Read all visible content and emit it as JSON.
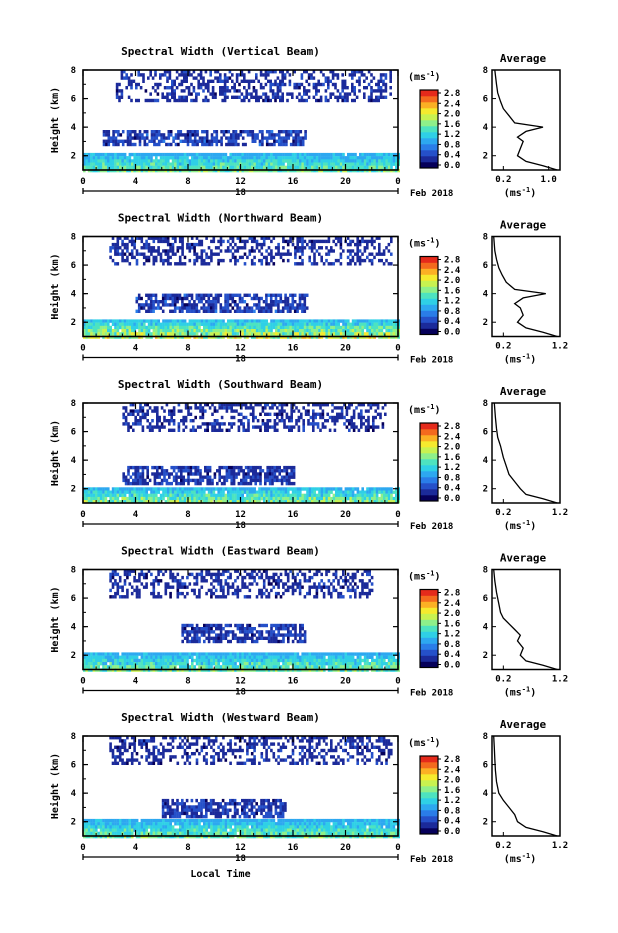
{
  "figure": {
    "xlabel_bottom": "Local Time",
    "date_label": "Feb 2018",
    "day_label": "18",
    "colorbar_unit": "(ms",
    "colorbar_unit_exp": "-1",
    "colorbar_unit_close": ")",
    "average_unit": "(ms",
    "average_unit_exp": "-1",
    "average_unit_close": ")",
    "colorbar_ticks": [
      "0.0",
      "0.4",
      "0.8",
      "1.2",
      "1.6",
      "2.0",
      "2.4",
      "2.8"
    ],
    "colorscale": [
      "#06005a",
      "#1b2a9a",
      "#2550c9",
      "#2a7de8",
      "#2da8f0",
      "#2fd0e6",
      "#4de3c0",
      "#8ef08a",
      "#c8f250",
      "#f5ea2e",
      "#fbb024",
      "#f46a1e",
      "#e52a1b"
    ],
    "missing_color": "#ffffff"
  },
  "chart_data": [
    {
      "type": "heatmap",
      "title": "Spectral Width (Vertical Beam)",
      "xlabel": "",
      "ylabel": "Height (km)",
      "x_ticks": [
        "0",
        "4",
        "8",
        "12",
        "16",
        "20",
        "0"
      ],
      "xlim": [
        0,
        24
      ],
      "y_ticks": [
        "2",
        "4",
        "6",
        "8"
      ],
      "ylim": [
        1,
        8
      ],
      "colorbar_range": [
        0,
        2.8
      ],
      "layers": [
        {
          "name": "boundary layer",
          "x_start": 0,
          "x_end": 24,
          "y_bottom": 1.0,
          "y_top": 2.2,
          "value_range": [
            0.6,
            1.8
          ]
        },
        {
          "name": "mid layer",
          "x_start": 1.5,
          "x_end": 17,
          "y_bottom": 2.7,
          "y_top": 3.8,
          "value_range": [
            0.1,
            0.6
          ]
        },
        {
          "name": "upper layer",
          "x_start": 2.5,
          "x_end": 23.5,
          "y_bottom": 5.8,
          "y_top": 8.0,
          "value_range": [
            0.1,
            0.4
          ]
        }
      ],
      "average_profile": {
        "title": "Average",
        "xlabel": "(ms-1)",
        "x_ticks": [
          "0.2",
          "1.0"
        ],
        "xlim": [
          0,
          1.2
        ],
        "y_ticks": [
          "2",
          "4",
          "6",
          "8"
        ],
        "ylim": [
          1,
          8
        ],
        "points": [
          [
            1.15,
            1.0
          ],
          [
            0.9,
            1.3
          ],
          [
            0.6,
            1.6
          ],
          [
            0.45,
            2.0
          ],
          [
            0.5,
            2.5
          ],
          [
            0.55,
            3.0
          ],
          [
            0.45,
            3.3
          ],
          [
            0.6,
            3.7
          ],
          [
            0.9,
            4.0
          ],
          [
            0.4,
            4.3
          ],
          [
            0.3,
            4.8
          ],
          [
            0.2,
            5.3
          ],
          [
            0.15,
            5.8
          ],
          [
            0.1,
            6.4
          ],
          [
            0.08,
            7.0
          ],
          [
            0.05,
            8.0
          ]
        ]
      }
    },
    {
      "type": "heatmap",
      "title": "Spectral Width (Northward Beam)",
      "xlabel": "",
      "ylabel": "Height (km)",
      "x_ticks": [
        "0",
        "4",
        "8",
        "12",
        "16",
        "20",
        "0"
      ],
      "xlim": [
        0,
        24
      ],
      "y_ticks": [
        "2",
        "4",
        "6",
        "8"
      ],
      "ylim": [
        1,
        8
      ],
      "colorbar_range": [
        0,
        2.8
      ],
      "layers": [
        {
          "name": "boundary layer",
          "x_start": 0,
          "x_end": 24,
          "y_bottom": 1.0,
          "y_top": 2.2,
          "value_range": [
            0.6,
            2.2
          ]
        },
        {
          "name": "mid layer",
          "x_start": 4,
          "x_end": 17,
          "y_bottom": 2.8,
          "y_top": 4.0,
          "value_range": [
            0.1,
            0.6
          ]
        },
        {
          "name": "upper layer",
          "x_start": 2,
          "x_end": 23.5,
          "y_bottom": 6.0,
          "y_top": 8.0,
          "value_range": [
            0.1,
            0.4
          ]
        }
      ],
      "average_profile": {
        "title": "Average",
        "xlabel": "(ms-1)",
        "x_ticks": [
          "0.2",
          "1.2"
        ],
        "xlim": [
          0,
          1.2
        ],
        "y_ticks": [
          "2",
          "4",
          "6",
          "8"
        ],
        "ylim": [
          1,
          8
        ],
        "points": [
          [
            1.15,
            1.0
          ],
          [
            0.9,
            1.3
          ],
          [
            0.6,
            1.6
          ],
          [
            0.45,
            2.0
          ],
          [
            0.55,
            2.5
          ],
          [
            0.5,
            3.0
          ],
          [
            0.4,
            3.3
          ],
          [
            0.55,
            3.7
          ],
          [
            0.95,
            4.0
          ],
          [
            0.4,
            4.3
          ],
          [
            0.25,
            4.8
          ],
          [
            0.18,
            5.3
          ],
          [
            0.12,
            5.8
          ],
          [
            0.08,
            6.4
          ],
          [
            0.05,
            7.0
          ],
          [
            0.03,
            8.0
          ]
        ]
      }
    },
    {
      "type": "heatmap",
      "title": "Spectral Width (Southward Beam)",
      "xlabel": "",
      "ylabel": "Height (km)",
      "x_ticks": [
        "0",
        "4",
        "8",
        "12",
        "16",
        "20",
        "0"
      ],
      "xlim": [
        0,
        24
      ],
      "y_ticks": [
        "2",
        "4",
        "6",
        "8"
      ],
      "ylim": [
        1,
        8
      ],
      "colorbar_range": [
        0,
        2.8
      ],
      "layers": [
        {
          "name": "boundary layer",
          "x_start": 0,
          "x_end": 24,
          "y_bottom": 1.0,
          "y_top": 2.1,
          "value_range": [
            0.6,
            2.0
          ]
        },
        {
          "name": "mid layer",
          "x_start": 3,
          "x_end": 16,
          "y_bottom": 2.4,
          "y_top": 3.6,
          "value_range": [
            0.1,
            0.5
          ]
        },
        {
          "name": "upper layer",
          "x_start": 3,
          "x_end": 23,
          "y_bottom": 6.0,
          "y_top": 8.0,
          "value_range": [
            0.1,
            0.4
          ]
        }
      ],
      "average_profile": {
        "title": "Average",
        "xlabel": "(ms-1)",
        "x_ticks": [
          "0.2",
          "1.2"
        ],
        "xlim": [
          0,
          1.2
        ],
        "y_ticks": [
          "2",
          "4",
          "6",
          "8"
        ],
        "ylim": [
          1,
          8
        ],
        "points": [
          [
            1.15,
            1.0
          ],
          [
            0.9,
            1.3
          ],
          [
            0.6,
            1.6
          ],
          [
            0.5,
            2.0
          ],
          [
            0.4,
            2.5
          ],
          [
            0.3,
            3.0
          ],
          [
            0.25,
            3.6
          ],
          [
            0.2,
            4.2
          ],
          [
            0.15,
            5.0
          ],
          [
            0.1,
            5.6
          ],
          [
            0.08,
            6.2
          ],
          [
            0.06,
            7.0
          ],
          [
            0.04,
            8.0
          ]
        ]
      }
    },
    {
      "type": "heatmap",
      "title": "Spectral Width (Eastward Beam)",
      "xlabel": "",
      "ylabel": "Height (km)",
      "x_ticks": [
        "0",
        "4",
        "8",
        "12",
        "16",
        "20",
        "0"
      ],
      "xlim": [
        0,
        24
      ],
      "y_ticks": [
        "2",
        "4",
        "6",
        "8"
      ],
      "ylim": [
        1,
        8
      ],
      "colorbar_range": [
        0,
        2.8
      ],
      "layers": [
        {
          "name": "boundary layer",
          "x_start": 0,
          "x_end": 24,
          "y_bottom": 1.0,
          "y_top": 2.2,
          "value_range": [
            0.6,
            1.8
          ]
        },
        {
          "name": "mid layer",
          "x_start": 7.5,
          "x_end": 17,
          "y_bottom": 3.0,
          "y_top": 4.2,
          "value_range": [
            0.1,
            0.5
          ]
        },
        {
          "name": "upper layer",
          "x_start": 2,
          "x_end": 22,
          "y_bottom": 6.0,
          "y_top": 8.0,
          "value_range": [
            0.1,
            0.4
          ]
        }
      ],
      "average_profile": {
        "title": "Average",
        "xlabel": "(ms-1)",
        "x_ticks": [
          "0.2",
          "1.2"
        ],
        "xlim": [
          0,
          1.2
        ],
        "y_ticks": [
          "2",
          "4",
          "6",
          "8"
        ],
        "ylim": [
          1,
          8
        ],
        "points": [
          [
            1.15,
            1.0
          ],
          [
            0.9,
            1.3
          ],
          [
            0.6,
            1.6
          ],
          [
            0.5,
            2.0
          ],
          [
            0.55,
            2.5
          ],
          [
            0.45,
            3.0
          ],
          [
            0.5,
            3.4
          ],
          [
            0.4,
            3.8
          ],
          [
            0.3,
            4.2
          ],
          [
            0.2,
            4.6
          ],
          [
            0.15,
            5.0
          ],
          [
            0.12,
            5.6
          ],
          [
            0.08,
            6.4
          ],
          [
            0.05,
            7.2
          ],
          [
            0.03,
            8.0
          ]
        ]
      }
    },
    {
      "type": "heatmap",
      "title": "Spectral Width (Westward Beam)",
      "xlabel": "Local Time",
      "ylabel": "Height (km)",
      "x_ticks": [
        "0",
        "4",
        "8",
        "12",
        "16",
        "20",
        "0"
      ],
      "xlim": [
        0,
        24
      ],
      "y_ticks": [
        "2",
        "4",
        "6",
        "8"
      ],
      "ylim": [
        1,
        8
      ],
      "colorbar_range": [
        0,
        2.8
      ],
      "layers": [
        {
          "name": "boundary layer",
          "x_start": 0,
          "x_end": 24,
          "y_bottom": 1.0,
          "y_top": 2.2,
          "value_range": [
            0.6,
            1.8
          ]
        },
        {
          "name": "mid layer",
          "x_start": 6,
          "x_end": 15.5,
          "y_bottom": 2.4,
          "y_top": 3.6,
          "value_range": [
            0.1,
            0.5
          ]
        },
        {
          "name": "upper layer",
          "x_start": 2,
          "x_end": 23.5,
          "y_bottom": 6.0,
          "y_top": 8.0,
          "value_range": [
            0.1,
            0.4
          ]
        }
      ],
      "average_profile": {
        "title": "Average",
        "xlabel": "(ms-1)",
        "x_ticks": [
          "0.2",
          "1.2"
        ],
        "xlim": [
          0,
          1.2
        ],
        "y_ticks": [
          "2",
          "4",
          "6",
          "8"
        ],
        "ylim": [
          1,
          8
        ],
        "points": [
          [
            1.15,
            1.0
          ],
          [
            0.9,
            1.3
          ],
          [
            0.6,
            1.6
          ],
          [
            0.45,
            2.0
          ],
          [
            0.4,
            2.5
          ],
          [
            0.3,
            3.0
          ],
          [
            0.2,
            3.5
          ],
          [
            0.12,
            4.0
          ],
          [
            0.08,
            4.8
          ],
          [
            0.06,
            5.6
          ],
          [
            0.05,
            6.4
          ],
          [
            0.04,
            7.2
          ],
          [
            0.03,
            8.0
          ]
        ]
      }
    }
  ]
}
